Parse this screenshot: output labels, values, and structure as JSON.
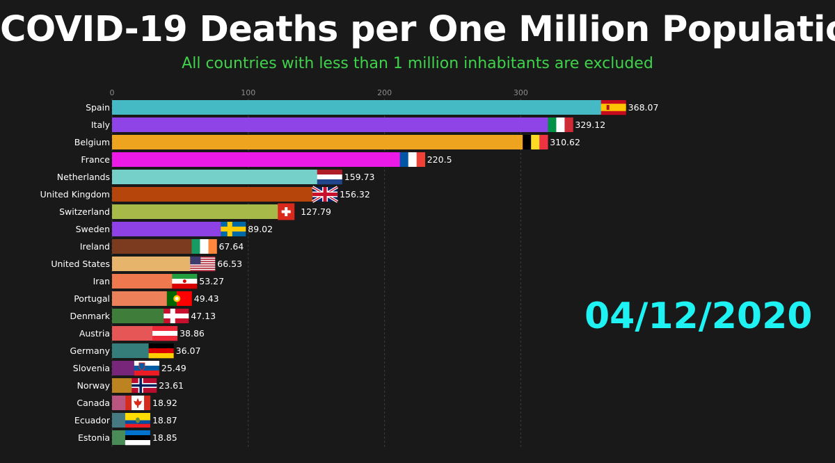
{
  "header": {
    "title": "COVID-19 Deaths per One Million Population",
    "subtitle": "All countries with less than 1 million inhabitants are excluded"
  },
  "date_label": "04/12/2020",
  "colors": {
    "background": "#191919",
    "title": "#ffffff",
    "subtitle": "#3fd24b",
    "date": "#1ff2f2"
  },
  "chart_data": {
    "type": "bar",
    "orientation": "horizontal",
    "title": "COVID-19 Deaths per One Million Population",
    "subtitle": "All countries with less than 1 million inhabitants are excluded",
    "xticks": [
      0,
      100,
      200,
      300
    ],
    "xlim": [
      0,
      400
    ],
    "grid": true,
    "categories": [
      "Spain",
      "Italy",
      "Belgium",
      "France",
      "Netherlands",
      "United Kingdom",
      "Switzerland",
      "Sweden",
      "Ireland",
      "United States",
      "Iran",
      "Portugal",
      "Denmark",
      "Austria",
      "Germany",
      "Slovenia",
      "Norway",
      "Canada",
      "Ecuador",
      "Estonia"
    ],
    "values": [
      368.07,
      329.12,
      310.62,
      220.5,
      159.73,
      156.32,
      127.79,
      89.02,
      67.64,
      66.53,
      53.27,
      49.43,
      47.13,
      38.86,
      36.07,
      25.49,
      23.61,
      18.92,
      18.87,
      18.85
    ],
    "value_labels": [
      "368.07",
      "329.12",
      "310.62",
      "220.5",
      "159.73",
      "156.32",
      "127.79",
      "89.02",
      "67.64",
      "66.53",
      "53.27",
      "49.43",
      "47.13",
      "38.86",
      "36.07",
      "25.49",
      "23.61",
      "18.92",
      "18.87",
      "18.85"
    ],
    "bar_colors": [
      "#45b9c4",
      "#8f44e8",
      "#eea41e",
      "#ec1ae6",
      "#74d0c8",
      "#b6450c",
      "#a7b949",
      "#8e42e6",
      "#7c3a1e",
      "#e6b46a",
      "#f0784e",
      "#ec8058",
      "#3e7d3a",
      "#e65656",
      "#357d7a",
      "#78267a",
      "#bb8420",
      "#ba5480",
      "#467a82",
      "#4a8c58"
    ],
    "flags": [
      "spain-flag",
      "italy-flag",
      "belgium-flag",
      "france-flag",
      "netherlands-flag",
      "united-kingdom-flag",
      "switzerland-flag",
      "sweden-flag",
      "ireland-flag",
      "united-states-flag",
      "iran-flag",
      "portugal-flag",
      "denmark-flag",
      "austria-flag",
      "germany-flag",
      "slovenia-flag",
      "norway-flag",
      "canada-flag",
      "ecuador-flag",
      "estonia-flag"
    ]
  }
}
